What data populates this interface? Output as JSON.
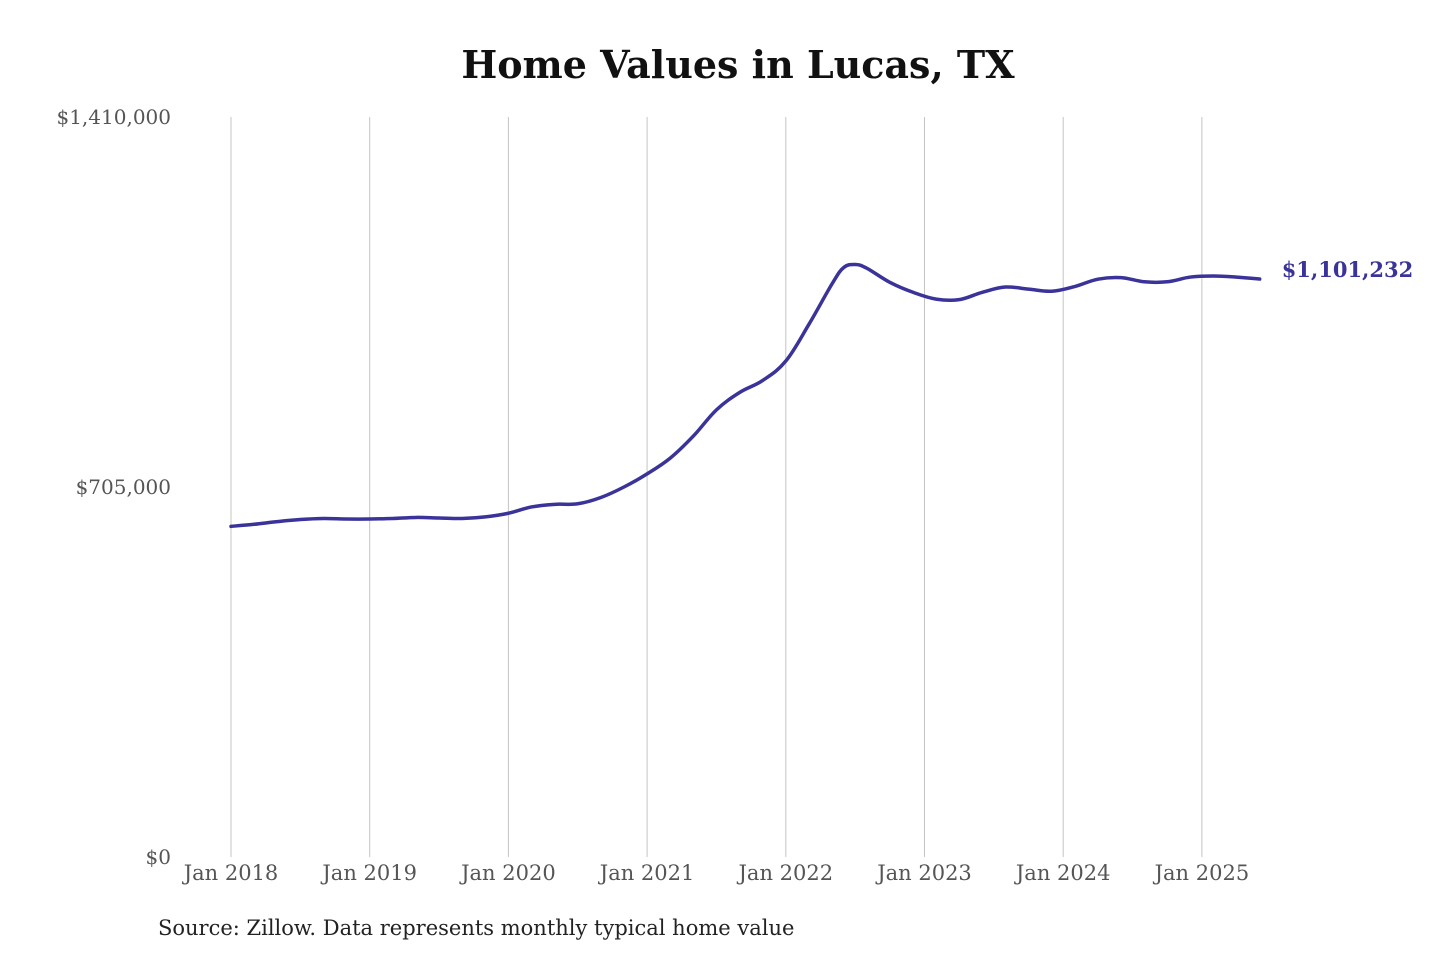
{
  "chart_data": {
    "type": "line",
    "title": "Home Values in Lucas, TX",
    "xlabel": "",
    "ylabel": "",
    "ylim": [
      0,
      1410000
    ],
    "y_ticks": [
      {
        "value": 0,
        "label": "$0"
      },
      {
        "value": 705000,
        "label": "$705,000"
      },
      {
        "value": 1410000,
        "label": "$1,410,000"
      }
    ],
    "x_ticks": [
      {
        "date": "2018-01",
        "label": "Jan 2018"
      },
      {
        "date": "2019-01",
        "label": "Jan 2019"
      },
      {
        "date": "2020-01",
        "label": "Jan 2020"
      },
      {
        "date": "2021-01",
        "label": "Jan 2021"
      },
      {
        "date": "2022-01",
        "label": "Jan 2022"
      },
      {
        "date": "2023-01",
        "label": "Jan 2023"
      },
      {
        "date": "2024-01",
        "label": "Jan 2024"
      },
      {
        "date": "2025-01",
        "label": "Jan 2025"
      }
    ],
    "grid": "vertical lines at x ticks",
    "legend": "none",
    "end_label": "$1,101,232",
    "series": [
      {
        "color": "#3a3399",
        "points": [
          [
            "2018-01",
            630000
          ],
          [
            "2018-03",
            634000
          ],
          [
            "2018-05",
            639000
          ],
          [
            "2018-07",
            643000
          ],
          [
            "2018-09",
            645000
          ],
          [
            "2018-11",
            644000
          ],
          [
            "2019-01",
            644000
          ],
          [
            "2019-03",
            645000
          ],
          [
            "2019-05",
            647000
          ],
          [
            "2019-07",
            646000
          ],
          [
            "2019-09",
            645000
          ],
          [
            "2019-11",
            648000
          ],
          [
            "2020-01",
            655000
          ],
          [
            "2020-03",
            667000
          ],
          [
            "2020-05",
            672000
          ],
          [
            "2020-07",
            673000
          ],
          [
            "2020-09",
            685000
          ],
          [
            "2020-11",
            705000
          ],
          [
            "2021-01",
            730000
          ],
          [
            "2021-03",
            760000
          ],
          [
            "2021-05",
            802000
          ],
          [
            "2021-07",
            852000
          ],
          [
            "2021-09",
            885000
          ],
          [
            "2021-11",
            908000
          ],
          [
            "2022-01",
            945000
          ],
          [
            "2022-03",
            1015000
          ],
          [
            "2022-05",
            1092000
          ],
          [
            "2022-06",
            1123000
          ],
          [
            "2022-07",
            1129000
          ],
          [
            "2022-08",
            1122000
          ],
          [
            "2022-10",
            1095000
          ],
          [
            "2022-12",
            1076000
          ],
          [
            "2023-02",
            1063000
          ],
          [
            "2023-04",
            1062000
          ],
          [
            "2023-06",
            1076000
          ],
          [
            "2023-08",
            1086000
          ],
          [
            "2023-10",
            1082000
          ],
          [
            "2023-12",
            1078000
          ],
          [
            "2024-02",
            1087000
          ],
          [
            "2024-04",
            1101000
          ],
          [
            "2024-06",
            1104000
          ],
          [
            "2024-08",
            1096000
          ],
          [
            "2024-10",
            1096000
          ],
          [
            "2024-12",
            1105000
          ],
          [
            "2025-02",
            1107000
          ],
          [
            "2025-04",
            1105000
          ],
          [
            "2025-06",
            1101232
          ]
        ]
      }
    ]
  },
  "source_note": "Source: Zillow. Data represents monthly typical home value"
}
